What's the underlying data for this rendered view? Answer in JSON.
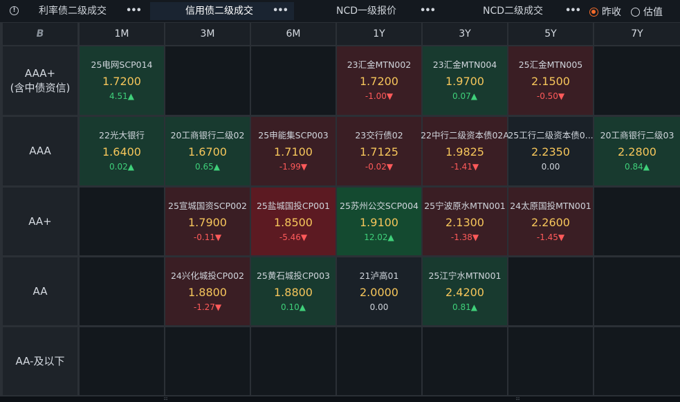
{
  "tabs": [
    {
      "label": "利率债二级成交",
      "active": false
    },
    {
      "label": "信用债二级成交",
      "active": true
    },
    {
      "label": "NCD一级报价",
      "active": false
    },
    {
      "label": "NCD二级成交",
      "active": false
    }
  ],
  "more_glyph": "•••",
  "radio": {
    "prev_close": "昨收",
    "valuation": "估值",
    "selected": "prev_close"
  },
  "corner_glyph": "B",
  "tenors": [
    "1M",
    "3M",
    "6M",
    "1Y",
    "3Y",
    "5Y",
    "7Y"
  ],
  "ratings": [
    {
      "line1": "AAA+",
      "line2": "(含中债资信)"
    },
    {
      "line1": "AAA",
      "line2": ""
    },
    {
      "line1": "AA+",
      "line2": ""
    },
    {
      "line1": "AA",
      "line2": ""
    },
    {
      "line1": "AA-及以下",
      "line2": ""
    }
  ],
  "colors": {
    "up_text": "#3fd07a",
    "down_text": "#ff5a5a",
    "yield_text": "#f6c65b",
    "tint": {
      "g1": "#183a2f",
      "g2": "#144a30",
      "r1": "#3a1e24",
      "r2": "#5c1a22",
      "n": "#1a2128",
      "e": "#13181d"
    }
  },
  "quotes": [
    [
      {
        "name": "25电网SCP014",
        "yield": "1.7200",
        "change": "4.51▲",
        "dir": "up",
        "tint": "g1"
      },
      null,
      null,
      {
        "name": "23汇金MTN002",
        "yield": "1.7200",
        "change": "-1.00▼",
        "dir": "down",
        "tint": "r1"
      },
      {
        "name": "23汇金MTN004",
        "yield": "1.9700",
        "change": "0.07▲",
        "dir": "up",
        "tint": "g1"
      },
      {
        "name": "25汇金MTN005",
        "yield": "2.1500",
        "change": "-0.50▼",
        "dir": "down",
        "tint": "r1"
      },
      null
    ],
    [
      {
        "name": "22光大银行",
        "yield": "1.6400",
        "change": "0.02▲",
        "dir": "up",
        "tint": "g1"
      },
      {
        "name": "20工商银行二级02",
        "yield": "1.6700",
        "change": "0.65▲",
        "dir": "up",
        "tint": "g1"
      },
      {
        "name": "25申能集SCP003",
        "yield": "1.7100",
        "change": "-1.99▼",
        "dir": "down",
        "tint": "r1"
      },
      {
        "name": "23交行债02",
        "yield": "1.7125",
        "change": "-0.02▼",
        "dir": "down",
        "tint": "r1"
      },
      {
        "name": "22中行二级资本债02A",
        "yield": "1.9825",
        "change": "-1.41▼",
        "dir": "down",
        "tint": "r1"
      },
      {
        "name": "25工行二级资本债0...",
        "yield": "2.2350",
        "change": "0.00",
        "dir": "flat",
        "tint": "n"
      },
      {
        "name": "20工商银行二级03",
        "yield": "2.2800",
        "change": "0.84▲",
        "dir": "up",
        "tint": "g1"
      }
    ],
    [
      null,
      {
        "name": "25宣城国资SCP002",
        "yield": "1.7900",
        "change": "-0.11▼",
        "dir": "down",
        "tint": "r1"
      },
      {
        "name": "25盐城国投CP001",
        "yield": "1.8500",
        "change": "-5.46▼",
        "dir": "down",
        "tint": "r2"
      },
      {
        "name": "25苏州公交SCP004",
        "yield": "1.9100",
        "change": "12.02▲",
        "dir": "up",
        "tint": "g2"
      },
      {
        "name": "25宁波原水MTN001",
        "yield": "2.1300",
        "change": "-1.38▼",
        "dir": "down",
        "tint": "r1"
      },
      {
        "name": "24太原国投MTN001",
        "yield": "2.2600",
        "change": "-1.45▼",
        "dir": "down",
        "tint": "r1"
      },
      null
    ],
    [
      null,
      {
        "name": "24兴化城投CP002",
        "yield": "1.8800",
        "change": "-1.27▼",
        "dir": "down",
        "tint": "r1"
      },
      {
        "name": "25黄石城投CP003",
        "yield": "1.8800",
        "change": "0.10▲",
        "dir": "up",
        "tint": "g1"
      },
      {
        "name": "21泸高01",
        "yield": "2.0000",
        "change": "0.00",
        "dir": "flat",
        "tint": "n"
      },
      {
        "name": "25江宁水MTN001",
        "yield": "2.4200",
        "change": "0.81▲",
        "dir": "up",
        "tint": "g1"
      },
      null,
      null
    ],
    [
      null,
      null,
      null,
      null,
      null,
      null,
      null
    ]
  ],
  "grip_glyph": "::::"
}
